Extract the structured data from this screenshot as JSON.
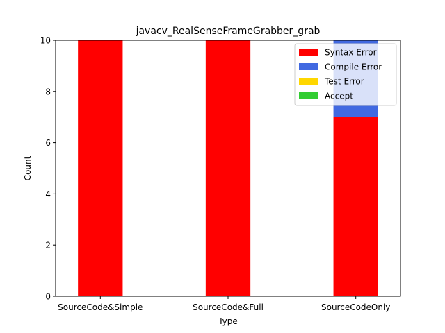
{
  "chart_data": {
    "type": "bar",
    "stacked": true,
    "title": "javacv_RealSenseFrameGrabber_grab",
    "xlabel": "Type",
    "ylabel": "Count",
    "ylim": [
      0,
      10
    ],
    "yticks": [
      0,
      2,
      4,
      6,
      8,
      10
    ],
    "categories": [
      "SourceCode&Simple",
      "SourceCode&Full",
      "SourceCodeOnly"
    ],
    "series": [
      {
        "name": "Syntax Error",
        "color": "#ff0000",
        "values": [
          10,
          10,
          7
        ]
      },
      {
        "name": "Compile Error",
        "color": "#4169e1",
        "values": [
          0,
          0,
          3
        ]
      },
      {
        "name": "Test Error",
        "color": "#ffd700",
        "values": [
          0,
          0,
          0
        ]
      },
      {
        "name": "Accept",
        "color": "#32cd32",
        "values": [
          0,
          0,
          0
        ]
      }
    ],
    "legend_position": "top-right",
    "grid": false
  }
}
